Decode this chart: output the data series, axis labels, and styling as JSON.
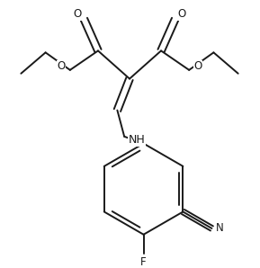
{
  "bg_color": "#ffffff",
  "line_color": "#1a1a1a",
  "line_width": 1.4,
  "font_size": 8.5,
  "figsize": [
    2.89,
    2.98
  ],
  "dpi": 100,
  "xlim": [
    0,
    289
  ],
  "ylim": [
    0,
    298
  ]
}
